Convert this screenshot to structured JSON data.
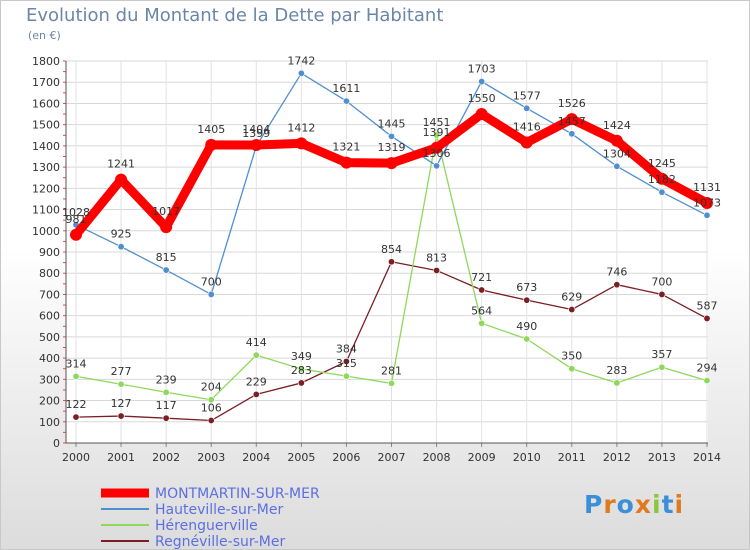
{
  "title": "Evolution du Montant de la Dette par Habitant",
  "unit": "(en €)",
  "logo": "Proxiti",
  "chart_data": {
    "type": "line",
    "title": "Evolution du Montant de la Dette par Habitant",
    "ylabel": "(en €)",
    "x": [
      "2000",
      "2001",
      "2002",
      "2003",
      "2004",
      "2005",
      "2006",
      "2007",
      "2008",
      "2009",
      "2010",
      "2011",
      "2012",
      "2013",
      "2014"
    ],
    "ylim": [
      0,
      1800
    ],
    "yticks": [
      "0",
      "100",
      "200",
      "300",
      "400",
      "500",
      "600",
      "700",
      "800",
      "900",
      "1000",
      "1100",
      "1200",
      "1300",
      "1400",
      "1500",
      "1600",
      "1700",
      "1800"
    ],
    "grid": true,
    "legend": "bottom-left",
    "series": [
      {
        "name": "MONTMARTIN-SUR-MER",
        "color": "#ff0000",
        "values": [
          981,
          1241,
          1017,
          1405,
          1404,
          1412,
          1321,
          1319,
          1391,
          1550,
          1416,
          1526,
          1424,
          1245,
          1131
        ],
        "labels": [
          "981",
          "1241",
          "1017",
          "1405",
          "1404",
          "1412",
          "1321",
          "1319",
          "1391",
          "1550",
          "1416",
          "1526",
          "1424",
          "1245",
          "1131"
        ]
      },
      {
        "name": "Hauteville-sur-Mer",
        "color": "#4f8fd0",
        "values": [
          1028,
          925,
          815,
          700,
          1399,
          1742,
          1611,
          1445,
          1306,
          1703,
          1577,
          1457,
          1304,
          1182,
          1073
        ],
        "labels": [
          "1028",
          "925",
          "815",
          "700",
          "1399",
          "1742",
          "1611",
          "1445",
          "1306",
          "1703",
          "1577",
          "1457",
          "1304",
          "1182",
          "1073"
        ]
      },
      {
        "name": "Hérenguerville",
        "color": "#8ed85b",
        "values": [
          314,
          277,
          239,
          204,
          414,
          349,
          315,
          281,
          1451,
          564,
          490,
          350,
          283,
          357,
          294
        ],
        "labels": [
          "314",
          "277",
          "239",
          "204",
          "414",
          "349",
          "315",
          "281",
          "1451",
          "564",
          "490",
          "350",
          "283",
          "357",
          "294"
        ]
      },
      {
        "name": "Regnéville-sur-Mer",
        "color": "#7a1f24",
        "values": [
          122,
          127,
          117,
          106,
          229,
          283,
          384,
          854,
          813,
          721,
          673,
          629,
          746,
          700,
          587
        ],
        "labels": [
          "122",
          "127",
          "117",
          "106",
          "229",
          "283",
          "384",
          "854",
          "813",
          "721",
          "673",
          "629",
          "746",
          "700",
          "587"
        ]
      }
    ]
  }
}
